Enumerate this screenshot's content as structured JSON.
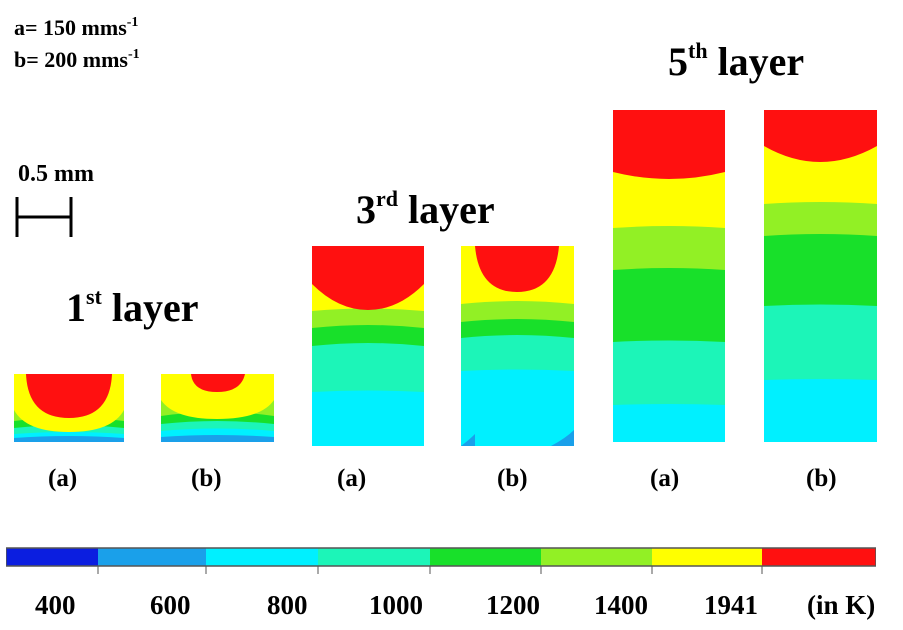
{
  "params": {
    "a_prefix": "a= 150 mms",
    "a_exp": "-1",
    "b_prefix": "b= 200 mms",
    "b_exp": "-1"
  },
  "scale_bar": {
    "label": "0.5 mm"
  },
  "layers": [
    {
      "num": "1",
      "suffix": "st",
      "word": " layer"
    },
    {
      "num": "3",
      "suffix": "rd",
      "word": " layer"
    },
    {
      "num": "5",
      "suffix": "th",
      "word": " layer"
    }
  ],
  "case_labels": [
    "(a)",
    "(b)",
    "(a)",
    "(b)",
    "(a)",
    "(b)"
  ],
  "colorbar": {
    "colors": [
      "#0B1EE0",
      "#1AA0EA",
      "#00F0FF",
      "#1CF5B8",
      "#18E02A",
      "#92F025",
      "#FFFF00",
      "#FF1010"
    ],
    "ticks": [
      "400",
      "600",
      "800",
      "1000",
      "1200",
      "1400",
      "1941"
    ],
    "unit": "(in K)"
  }
}
